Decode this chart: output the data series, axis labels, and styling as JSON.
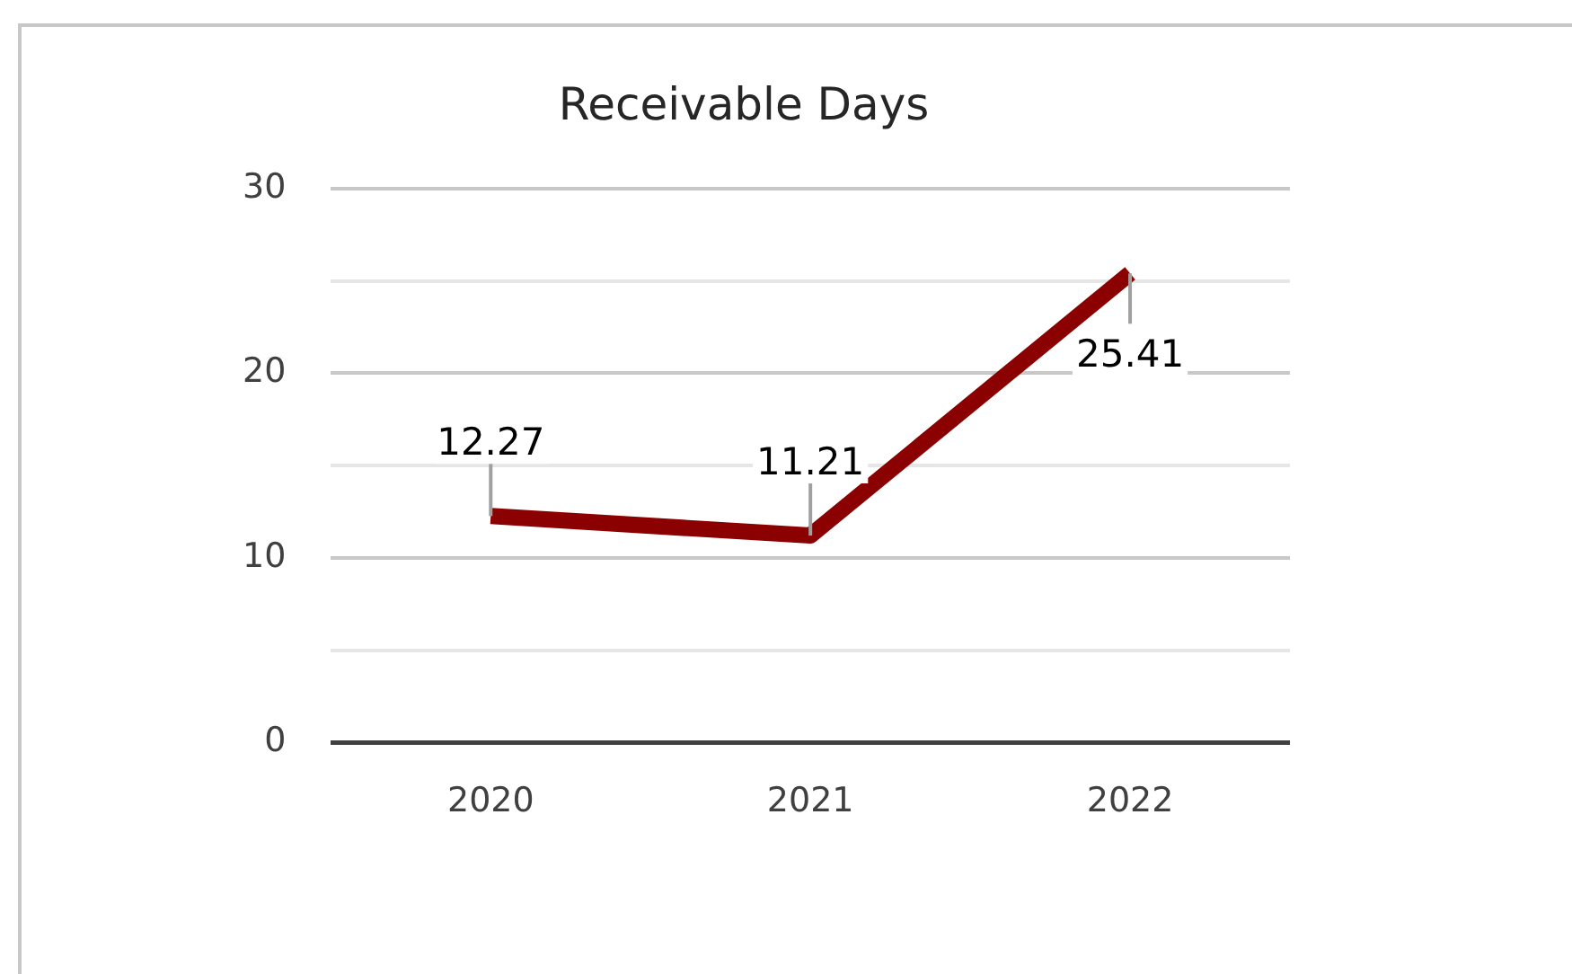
{
  "chart_data": {
    "type": "line",
    "title": "Receivable Days",
    "categories": [
      "2020",
      "2021",
      "2022"
    ],
    "series": [
      {
        "color": "#8b0000",
        "values": [
          12.27,
          11.21,
          25.41
        ]
      }
    ],
    "ylim": [
      0,
      30
    ],
    "yticks": [
      0,
      {
        "value": 5,
        "label": null
      },
      10,
      {
        "value": 15,
        "label": null
      },
      20,
      {
        "value": 25,
        "label": null
      },
      30
    ],
    "grid": "y",
    "legend": false,
    "marker": "none",
    "line_style": "solid",
    "data_labels": true
  }
}
